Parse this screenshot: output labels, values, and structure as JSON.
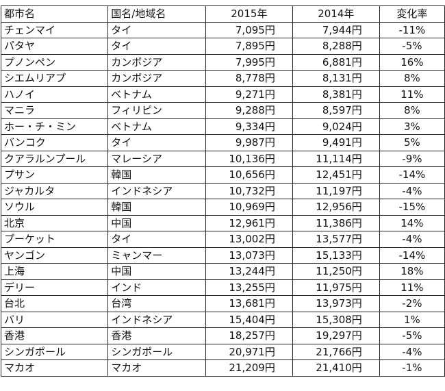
{
  "headers": [
    "都市名",
    "国名/地域名",
    "2015年",
    "2014年",
    "変化率"
  ],
  "rows": [
    [
      "チェンマイ",
      "タイ",
      "7,095円",
      "7,944円",
      "-11%"
    ],
    [
      "パタヤ",
      "タイ",
      "7,895円",
      "8,288円",
      "-5%"
    ],
    [
      "プノンペン",
      "カンボジア",
      "7,995円",
      "6,881円",
      "16%"
    ],
    [
      "シエムリアプ",
      "カンボジア",
      "8,778円",
      "8,131円",
      "8%"
    ],
    [
      "ハノイ",
      "ベトナム",
      "9,271円",
      "8,381円",
      "11%"
    ],
    [
      "マニラ",
      "フィリピン",
      "9,288円",
      "8,597円",
      "8%"
    ],
    [
      "ホー・チ・ミン",
      "ベトナム",
      "9,334円",
      "9,024円",
      "3%"
    ],
    [
      "バンコク",
      "タイ",
      "9,987円",
      "9,491円",
      "5%"
    ],
    [
      "クアラルンプール",
      "マレーシア",
      "10,136円",
      "11,114円",
      "-9%"
    ],
    [
      "プサン",
      "韓国",
      "10,656円",
      "12,451円",
      "-14%"
    ],
    [
      "ジャカルタ",
      "インドネシア",
      "10,732円",
      "11,197円",
      "-4%"
    ],
    [
      "ソウル",
      "韓国",
      "10,969円",
      "12,956円",
      "-15%"
    ],
    [
      "北京",
      "中国",
      "12,961円",
      "11,386円",
      "14%"
    ],
    [
      "プーケット",
      "タイ",
      "13,002円",
      "13,577円",
      "-4%"
    ],
    [
      "ヤンゴン",
      "ミャンマー",
      "13,073円",
      "15,133円",
      "-14%"
    ],
    [
      "上海",
      "中国",
      "13,244円",
      "11,250円",
      "18%"
    ],
    [
      "デリー",
      "インド",
      "13,255円",
      "11,975円",
      "11%"
    ],
    [
      "台北",
      "台湾",
      "13,681円",
      "13,973円",
      "-2%"
    ],
    [
      "バリ",
      "インドネシア",
      "15,404円",
      "15,308円",
      "1%"
    ],
    [
      "香港",
      "香港",
      "18,257円",
      "19,297円",
      "-5%"
    ],
    [
      "シンガポール",
      "シンガポール",
      "20,971円",
      "21,766円",
      "-4%"
    ],
    [
      "マカオ",
      "マカオ",
      "21,209円",
      "21,410円",
      "-1%"
    ]
  ]
}
